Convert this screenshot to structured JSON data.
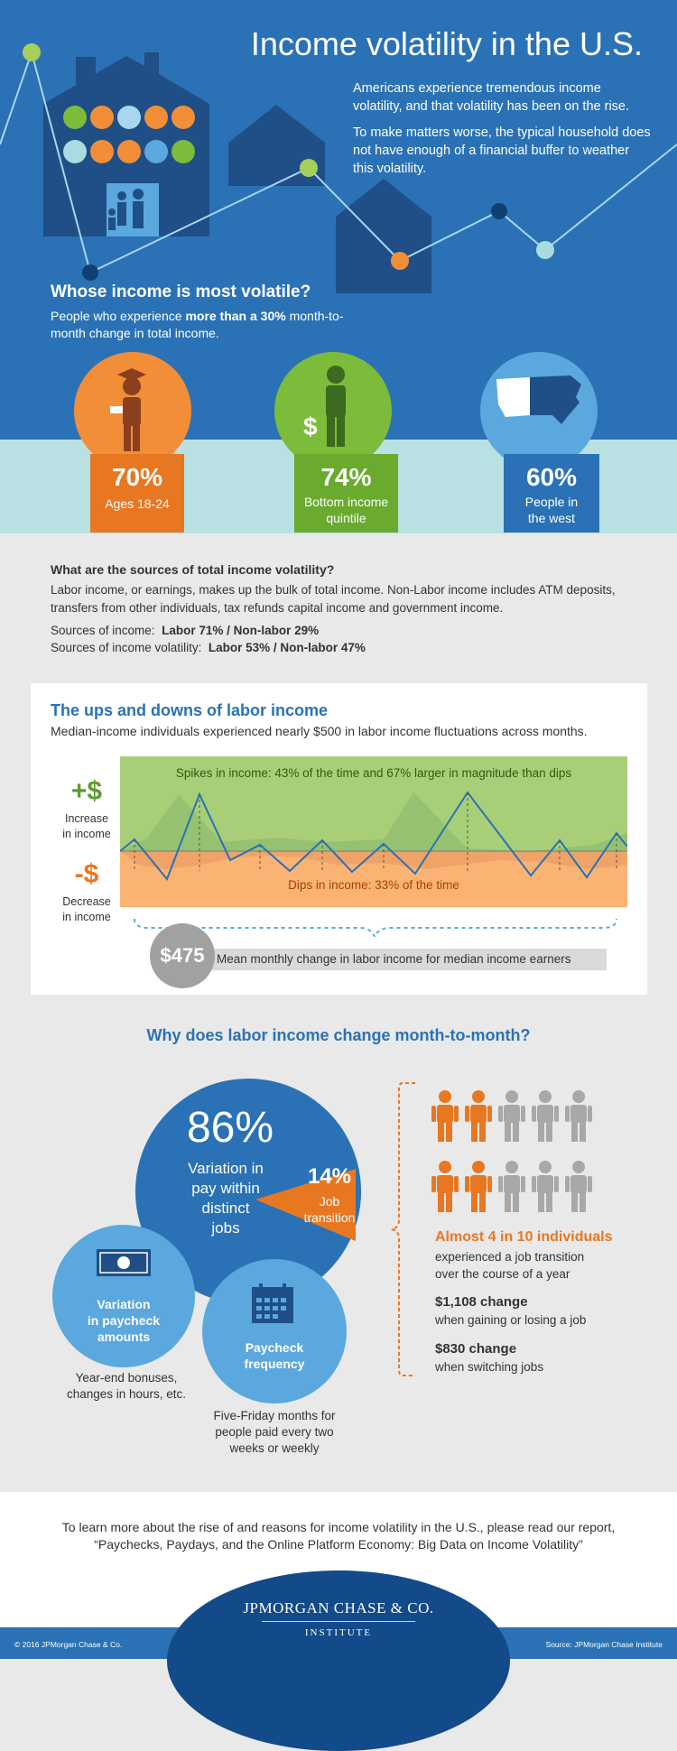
{
  "hero": {
    "title": "Income volatility in the U.S.",
    "paragraph_1": "Americans experience tremendous income volatility, and that volatility has been on the rise.",
    "paragraph_2": "To make matters worse, the typical household does not have enough of a financial buffer to weather this volatility."
  },
  "whose": {
    "title": "Whose income is most volatile?",
    "subtitle_prefix": "People who experience ",
    "subtitle_bold": "more than a 30%",
    "subtitle_suffix": " month-to-month change in total income.",
    "stats": [
      {
        "value": "70%",
        "label": "Ages 18-24",
        "color": "#e87722",
        "circle_color": "#f28e38",
        "icon": "graduate-icon"
      },
      {
        "value": "74%",
        "label_1": "Bottom income",
        "label_2": "quintile",
        "color": "#6aaa2f",
        "circle_color": "#7dbb3a",
        "icon": "person-dollar-icon"
      },
      {
        "value": "60%",
        "label_1": "People in",
        "label_2": "the west",
        "color": "#2a72b5",
        "circle_color": "#5aa8de",
        "icon": "us-map-icon"
      }
    ]
  },
  "sources": {
    "title": "What are the sources of total income volatility?",
    "body": "Labor income, or earnings, makes up the bulk of total income. Non-Labor income includes ATM deposits, transfers from other individuals, tax refunds capital income and government income.",
    "income_prefix": "Sources of income:",
    "income_values": "Labor 71%  /  Non-labor 29%",
    "volatility_prefix": "Sources of income volatility:",
    "volatility_values": "Labor 53%  /  Non-labor 47%"
  },
  "labor": {
    "title": "The ups and downs of labor income",
    "subtitle": "Median-income individuals experienced nearly $500 in labor income fluctuations across months.",
    "increase_sign": "+$",
    "increase_label_1": "Increase",
    "increase_label_2": "in income",
    "decrease_sign": "-$",
    "decrease_label_1": "Decrease",
    "decrease_label_2": "in income",
    "spikes_label": "Spikes in income: 43% of the time and 67% larger in magnitude than dips",
    "dips_label": "Dips in income: 33% of the time",
    "mean_value": "$475",
    "mean_label": "Mean monthly change in labor income for median income earners",
    "colors": {
      "spike_zone": "#a8cf78",
      "dip_zone": "#fbb374",
      "line": "#2a72b5"
    }
  },
  "why": {
    "title": "Why does labor income change month-to-month?",
    "main_percent": "86%",
    "main_label_1": "Variation in",
    "main_label_2": "pay within",
    "main_label_3": "distinct",
    "main_label_4": "jobs",
    "job_percent": "14%",
    "job_label_1": "Job",
    "job_label_2": "transition",
    "paycheck_label_1": "Variation",
    "paycheck_label_2": "in paycheck",
    "paycheck_label_3": "amounts",
    "paycheck_note_1": "Year-end bonuses,",
    "paycheck_note_2": "changes in hours, etc.",
    "frequency_label_1": "Paycheck",
    "frequency_label_2": "frequency",
    "frequency_note_1": "Five-Friday months for",
    "frequency_note_2": "people paid every two",
    "frequency_note_3": "weeks or weekly",
    "highlight": "Almost 4 in 10 individuals",
    "highlight_sub_1": "experienced a job transition",
    "highlight_sub_2": "over the course of a year",
    "change_1_value": "$1,108 change",
    "change_1_label": "when gaining or losing a job",
    "change_2_value": "$830 change",
    "change_2_label": "when switching jobs",
    "people_highlighted": 4,
    "people_total": 10
  },
  "footer": {
    "text_1": "To learn more about the rise of and reasons for income volatility in the U.S., please read our report,",
    "text_2": "“Paychecks, Paydays, and the Online Platform Economy: Big Data on Income Volatility”",
    "logo": "JPMORGAN CHASE & CO.",
    "logo_sub": "INSTITUTE",
    "copyright": "© 2016 JPMorgan Chase & Co.",
    "source": "Source: JPMorgan Chase Institute"
  }
}
